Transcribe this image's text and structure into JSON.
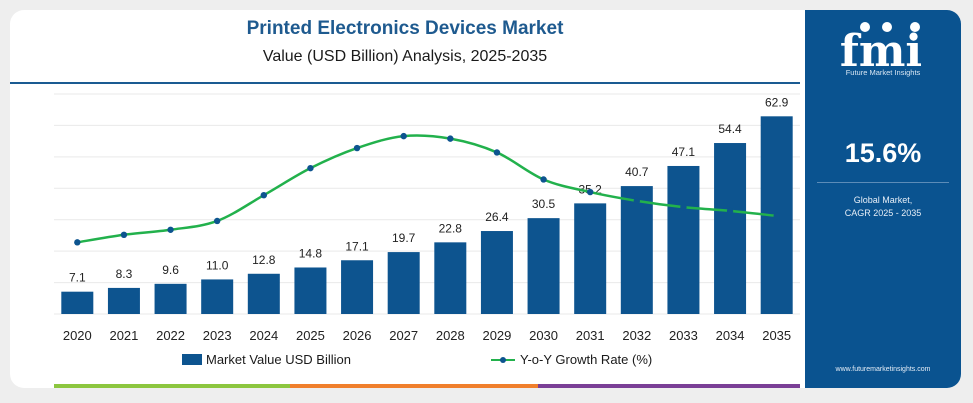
{
  "chart_data": {
    "type": "bar",
    "title": "Printed Electronics Devices Market",
    "subtitle": "Value (USD Billion) Analysis, 2025-2035",
    "categories": [
      "2020",
      "2021",
      "2022",
      "2023",
      "2024",
      "2025",
      "2026",
      "2027",
      "2028",
      "2029",
      "2030",
      "2031",
      "2032",
      "2033",
      "2034",
      "2035"
    ],
    "series": [
      {
        "name": "Market Value USD Billion",
        "type": "bar",
        "values": [
          7.1,
          8.3,
          9.6,
          11.0,
          12.8,
          14.8,
          17.1,
          19.7,
          22.8,
          26.4,
          30.5,
          35.2,
          40.7,
          47.1,
          54.4,
          62.9
        ],
        "labels": [
          "7.1",
          "8.3",
          "9.6",
          "11.0",
          "12.8",
          "14.8",
          "17.1",
          "19.7",
          "22.8",
          "26.4",
          "30.5",
          "35.2",
          "40.7",
          "47.1",
          "54.4",
          "62.9"
        ],
        "color": "#0d548f"
      },
      {
        "name": "Y-o-Y Growth Rate (%)",
        "type": "line",
        "values": [
          11.4,
          12.6,
          13.4,
          14.8,
          18.9,
          23.2,
          26.4,
          28.3,
          27.9,
          25.7,
          21.4,
          19.4,
          18.0,
          17.0,
          16.4,
          15.6
        ],
        "color": "#22b14c"
      }
    ],
    "ylim": [
      0,
      70
    ],
    "y2lim": [
      0,
      35
    ],
    "grid": true,
    "legend": "bottom"
  },
  "sidebar": {
    "logo_text": "fmi",
    "tagline": "Future Market Insights",
    "cagr_value": "15.6%",
    "cagr_label_line1": "Global Market,",
    "cagr_label_line2": "CAGR 2025 - 2035",
    "url": "www.futuremarketinsights.com"
  },
  "colors": {
    "accent": "#0a5390",
    "line": "#22b14c",
    "title": "#1e5a8f",
    "strip_green": "#8cc63f",
    "strip_orange": "#f07f2c",
    "strip_purple": "#7a3f96"
  }
}
